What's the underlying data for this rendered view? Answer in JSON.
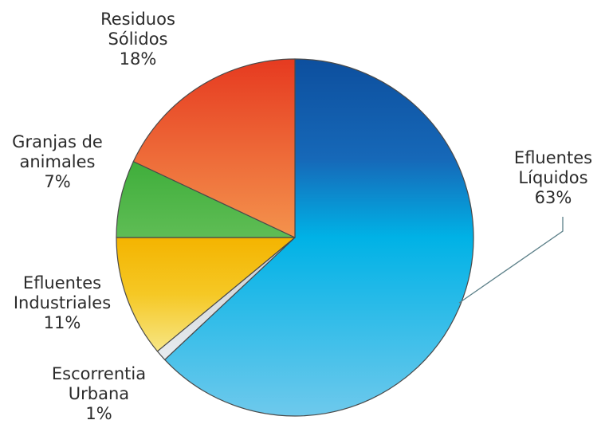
{
  "chart_data": {
    "type": "pie",
    "title": "",
    "slices": [
      {
        "label_lines": [
          "Efluentes",
          "Líquidos"
        ],
        "pct_text": "63%",
        "value": 63,
        "color": "#1aa7df"
      },
      {
        "label_lines": [
          "Escorrentia",
          "Urbana"
        ],
        "pct_text": "1%",
        "value": 1,
        "color": "#d8dde2"
      },
      {
        "label_lines": [
          "Efluentes",
          "Industriales"
        ],
        "pct_text": "11%",
        "value": 11,
        "color": "#f4c62a"
      },
      {
        "label_lines": [
          "Granjas de",
          "animales"
        ],
        "pct_text": "7%",
        "value": 7,
        "color": "#4caf4a"
      },
      {
        "label_lines": [
          "Residuos",
          "Sólidos"
        ],
        "pct_text": "18%",
        "value": 18,
        "color": "#ea5a2c"
      }
    ]
  }
}
